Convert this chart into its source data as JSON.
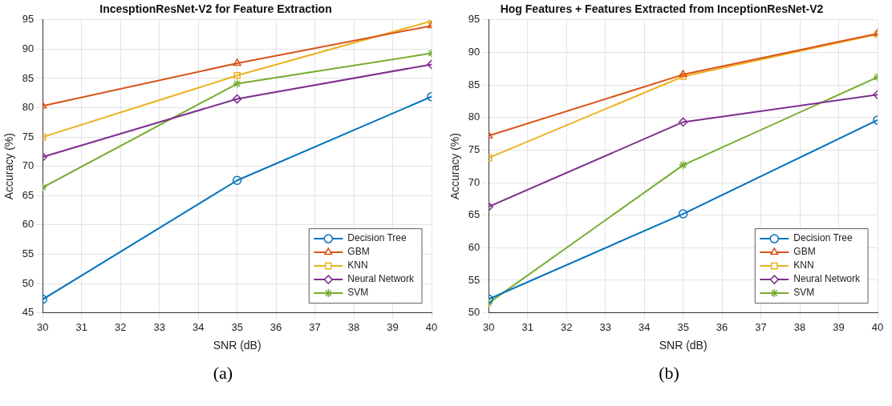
{
  "chart_data": [
    {
      "type": "line",
      "title": "IncesptionResNet-V2 for Feature Extraction",
      "xlabel": "SNR (dB)",
      "ylabel": "Accuracy (%)",
      "annotations": [
        "(a)"
      ],
      "x": [
        30,
        35,
        40
      ],
      "xlim": [
        30,
        40
      ],
      "ylim": [
        45,
        95
      ],
      "xticks": [
        30,
        31,
        32,
        33,
        34,
        35,
        36,
        37,
        38,
        39,
        40
      ],
      "yticks": [
        45,
        50,
        55,
        60,
        65,
        70,
        75,
        80,
        85,
        90,
        95
      ],
      "grid": true,
      "legend": "bottom right",
      "line_style": "solid",
      "series": [
        {
          "name": "Decision Tree",
          "color": "#0072bd",
          "marker": "circle",
          "values": [
            47.3,
            67.6,
            81.9
          ]
        },
        {
          "name": "GBM",
          "color": "#d95319",
          "marker": "triangle",
          "values": [
            80.3,
            87.6,
            94.0
          ]
        },
        {
          "name": "KNN",
          "color": "#edb120",
          "marker": "square",
          "values": [
            75.0,
            85.5,
            94.8
          ]
        },
        {
          "name": "Neural Network",
          "color": "#7e2f8e",
          "marker": "diamond",
          "values": [
            71.6,
            81.5,
            87.4
          ]
        },
        {
          "name": "SVM",
          "color": "#77ac30",
          "marker": "cross",
          "values": [
            66.4,
            84.1,
            89.3
          ]
        }
      ]
    },
    {
      "type": "line",
      "title": "Hog Features + Features Extracted from InceptionResNet-V2",
      "xlabel": "SNR (dB)",
      "ylabel": "Accuracy (%)",
      "annotations": [
        "(b)"
      ],
      "x": [
        30,
        35,
        40
      ],
      "xlim": [
        30,
        40
      ],
      "ylim": [
        50,
        95
      ],
      "xticks": [
        30,
        31,
        32,
        33,
        34,
        35,
        36,
        37,
        38,
        39,
        40
      ],
      "yticks": [
        50,
        55,
        60,
        65,
        70,
        75,
        80,
        85,
        90,
        95
      ],
      "grid": true,
      "legend": "bottom right",
      "line_style": "solid",
      "series": [
        {
          "name": "Decision Tree",
          "color": "#0072bd",
          "marker": "circle",
          "values": [
            52.1,
            65.2,
            79.6
          ]
        },
        {
          "name": "GBM",
          "color": "#d95319",
          "marker": "triangle",
          "values": [
            77.2,
            86.6,
            92.9
          ]
        },
        {
          "name": "KNN",
          "color": "#edb120",
          "marker": "square",
          "values": [
            73.8,
            86.3,
            92.8
          ]
        },
        {
          "name": "Neural Network",
          "color": "#7e2f8e",
          "marker": "diamond",
          "values": [
            66.3,
            79.3,
            83.5
          ]
        },
        {
          "name": "SVM",
          "color": "#77ac30",
          "marker": "cross",
          "values": [
            51.5,
            72.7,
            86.2
          ]
        }
      ]
    }
  ]
}
